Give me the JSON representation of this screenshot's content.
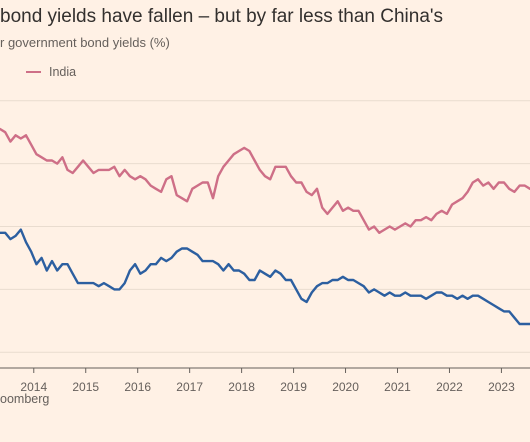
{
  "header": {
    "title": "bond yields have fallen – but by far less than China's",
    "subtitle": "r government bond yields (%)"
  },
  "legend": {
    "items": [
      {
        "label": "India",
        "color": "#ce6f87"
      }
    ]
  },
  "source": "oomberg",
  "chart_data": {
    "type": "line",
    "title": "bond yields have fallen – but by far less than China's",
    "subtitle": "r government bond yields (%)",
    "xlabel": "",
    "ylabel": "",
    "x_ticks": [
      "2014",
      "2015",
      "2016",
      "2017",
      "2018",
      "2019",
      "2020",
      "2021",
      "2022",
      "2023"
    ],
    "xlim": [
      2013.35,
      2023.55
    ],
    "ylim": [
      1.5,
      10.5
    ],
    "grid": true,
    "legend_position": "top-left",
    "series": [
      {
        "name": "India",
        "color": "#ce6f87",
        "x": [
          2013.35,
          2013.45,
          2013.55,
          2013.65,
          2013.75,
          2013.85,
          2013.95,
          2014.05,
          2014.15,
          2014.25,
          2014.35,
          2014.45,
          2014.55,
          2014.65,
          2014.75,
          2014.85,
          2014.95,
          2015.05,
          2015.15,
          2015.25,
          2015.35,
          2015.45,
          2015.55,
          2015.65,
          2015.75,
          2015.85,
          2015.95,
          2016.05,
          2016.15,
          2016.25,
          2016.35,
          2016.45,
          2016.55,
          2016.65,
          2016.75,
          2016.85,
          2016.95,
          2017.05,
          2017.15,
          2017.25,
          2017.35,
          2017.45,
          2017.55,
          2017.65,
          2017.75,
          2017.85,
          2017.95,
          2018.05,
          2018.15,
          2018.25,
          2018.35,
          2018.45,
          2018.55,
          2018.65,
          2018.75,
          2018.85,
          2018.95,
          2019.05,
          2019.15,
          2019.25,
          2019.35,
          2019.45,
          2019.55,
          2019.65,
          2019.75,
          2019.85,
          2019.95,
          2020.05,
          2020.15,
          2020.25,
          2020.35,
          2020.45,
          2020.55,
          2020.65,
          2020.75,
          2020.85,
          2020.95,
          2021.05,
          2021.15,
          2021.25,
          2021.35,
          2021.45,
          2021.55,
          2021.65,
          2021.75,
          2021.85,
          2021.95,
          2022.05,
          2022.15,
          2022.25,
          2022.35,
          2022.45,
          2022.55,
          2022.65,
          2022.75,
          2022.85,
          2022.95,
          2023.05,
          2023.15,
          2023.25,
          2023.35,
          2023.45,
          2023.55
        ],
        "y": [
          9.1,
          9.0,
          8.7,
          8.9,
          8.8,
          8.9,
          8.6,
          8.3,
          8.2,
          8.1,
          8.1,
          8.0,
          8.2,
          7.8,
          7.7,
          7.9,
          8.1,
          7.9,
          7.7,
          7.8,
          7.8,
          7.8,
          7.9,
          7.6,
          7.8,
          7.6,
          7.5,
          7.6,
          7.5,
          7.3,
          7.2,
          7.1,
          7.5,
          7.6,
          7.0,
          6.9,
          6.8,
          7.2,
          7.3,
          7.4,
          7.4,
          6.9,
          7.6,
          7.9,
          8.1,
          8.3,
          8.4,
          8.5,
          8.4,
          8.1,
          7.8,
          7.6,
          7.5,
          7.9,
          7.9,
          7.9,
          7.6,
          7.4,
          7.4,
          7.1,
          7.0,
          7.2,
          6.6,
          6.4,
          6.6,
          6.8,
          6.5,
          6.6,
          6.5,
          6.5,
          6.2,
          5.9,
          6.0,
          5.8,
          5.9,
          6.0,
          5.9,
          6.0,
          6.1,
          6.0,
          6.2,
          6.2,
          6.3,
          6.2,
          6.4,
          6.5,
          6.4,
          6.7,
          6.8,
          6.9,
          7.1,
          7.4,
          7.5,
          7.3,
          7.4,
          7.2,
          7.4,
          7.4,
          7.2,
          7.1,
          7.3,
          7.3,
          7.2
        ]
      },
      {
        "name": "",
        "color": "#2c5fa0",
        "x": [
          2013.35,
          2013.45,
          2013.55,
          2013.65,
          2013.75,
          2013.85,
          2013.95,
          2014.05,
          2014.15,
          2014.25,
          2014.35,
          2014.45,
          2014.55,
          2014.65,
          2014.75,
          2014.85,
          2014.95,
          2015.05,
          2015.15,
          2015.25,
          2015.35,
          2015.45,
          2015.55,
          2015.65,
          2015.75,
          2015.85,
          2015.95,
          2016.05,
          2016.15,
          2016.25,
          2016.35,
          2016.45,
          2016.55,
          2016.65,
          2016.75,
          2016.85,
          2016.95,
          2017.05,
          2017.15,
          2017.25,
          2017.35,
          2017.45,
          2017.55,
          2017.65,
          2017.75,
          2017.85,
          2017.95,
          2018.05,
          2018.15,
          2018.25,
          2018.35,
          2018.45,
          2018.55,
          2018.65,
          2018.75,
          2018.85,
          2018.95,
          2019.05,
          2019.15,
          2019.25,
          2019.35,
          2019.45,
          2019.55,
          2019.65,
          2019.75,
          2019.85,
          2019.95,
          2020.05,
          2020.15,
          2020.25,
          2020.35,
          2020.45,
          2020.55,
          2020.65,
          2020.75,
          2020.85,
          2020.95,
          2021.05,
          2021.15,
          2021.25,
          2021.35,
          2021.45,
          2021.55,
          2021.65,
          2021.75,
          2021.85,
          2021.95,
          2022.05,
          2022.15,
          2022.25,
          2022.35,
          2022.45,
          2022.55,
          2022.65,
          2022.75,
          2022.85,
          2022.95,
          2023.05,
          2023.15,
          2023.25,
          2023.35,
          2023.45,
          2023.55
        ],
        "y": [
          5.8,
          5.8,
          5.6,
          5.7,
          5.9,
          5.5,
          5.2,
          4.8,
          5.0,
          4.6,
          4.9,
          4.6,
          4.8,
          4.8,
          4.5,
          4.2,
          4.2,
          4.2,
          4.2,
          4.1,
          4.2,
          4.1,
          4.0,
          4.0,
          4.2,
          4.6,
          4.8,
          4.5,
          4.6,
          4.8,
          4.8,
          5.0,
          4.9,
          5.0,
          5.2,
          5.3,
          5.3,
          5.2,
          5.1,
          4.9,
          4.9,
          4.9,
          4.8,
          4.6,
          4.8,
          4.6,
          4.6,
          4.5,
          4.3,
          4.3,
          4.6,
          4.5,
          4.4,
          4.6,
          4.5,
          4.3,
          4.3,
          4.0,
          3.7,
          3.6,
          3.9,
          4.1,
          4.2,
          4.2,
          4.3,
          4.3,
          4.4,
          4.3,
          4.3,
          4.2,
          4.1,
          3.9,
          4.0,
          3.9,
          3.8,
          3.9,
          3.8,
          3.8,
          3.9,
          3.8,
          3.8,
          3.8,
          3.7,
          3.8,
          3.9,
          3.9,
          3.8,
          3.8,
          3.7,
          3.8,
          3.7,
          3.8,
          3.8,
          3.7,
          3.6,
          3.5,
          3.4,
          3.3,
          3.3,
          3.1,
          2.9,
          2.9,
          2.9
        ]
      }
    ]
  }
}
